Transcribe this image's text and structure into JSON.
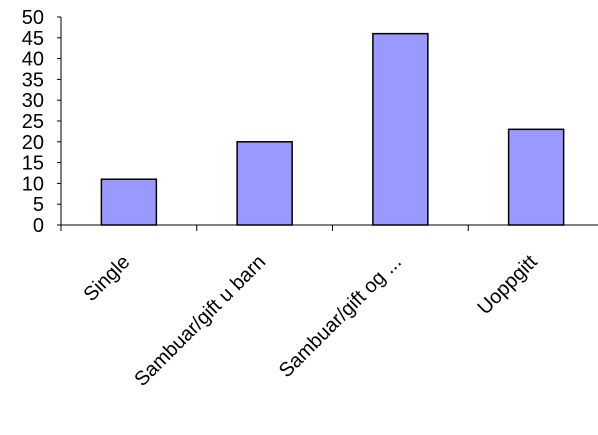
{
  "chart_data": {
    "type": "bar",
    "categories": [
      "Single",
      "Sambuar/gift u barn",
      "Sambuar/gift og ...",
      "Uoppgitt"
    ],
    "values": [
      11,
      20,
      46,
      23
    ],
    "title": "",
    "xlabel": "",
    "ylabel": "",
    "ylim": [
      0,
      50
    ],
    "yticks": [
      0,
      5,
      10,
      15,
      20,
      25,
      30,
      35,
      40,
      45,
      50
    ],
    "grid": false,
    "legend": "none",
    "bar_color": "#9999ff",
    "bar_edge_color": "#000000"
  }
}
